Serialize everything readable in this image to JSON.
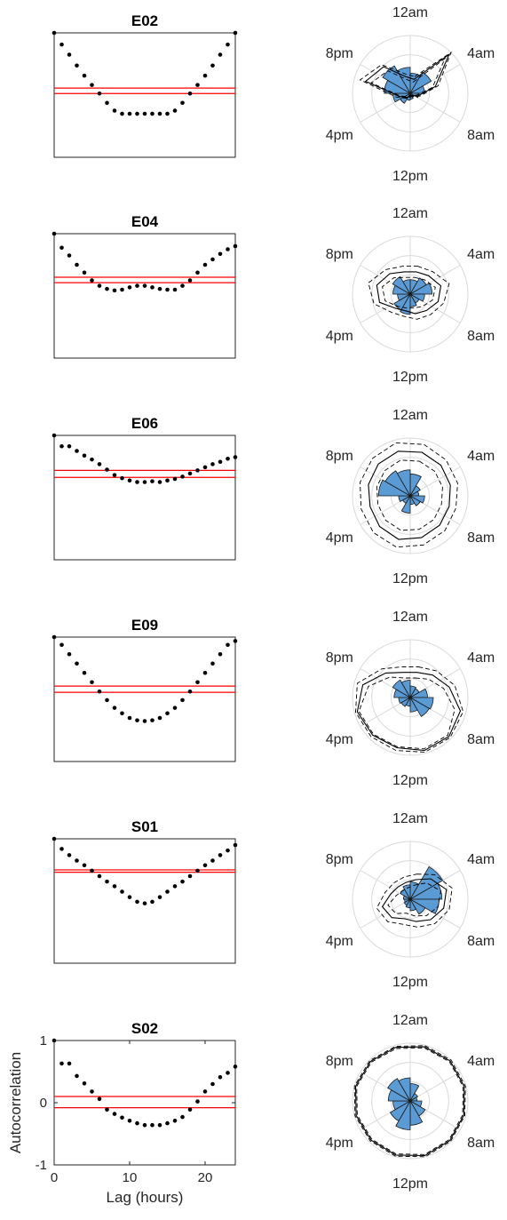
{
  "chart_data": {
    "type": "scatter",
    "panels": [
      {
        "title": "E02",
        "autocorrelation": {
          "x": [
            0,
            1,
            2,
            3,
            4,
            5,
            6,
            7,
            8,
            9,
            10,
            11,
            12,
            13,
            14,
            15,
            16,
            17,
            18,
            19,
            20,
            21,
            22,
            23,
            24
          ],
          "y": [
            1,
            0.85,
            0.72,
            0.58,
            0.45,
            0.33,
            0.22,
            0.1,
            0.0,
            -0.04,
            -0.04,
            -0.04,
            -0.04,
            -0.04,
            -0.04,
            -0.04,
            0.0,
            0.1,
            0.22,
            0.33,
            0.45,
            0.58,
            0.72,
            0.85,
            1
          ],
          "ylim": [
            -0.6,
            1
          ],
          "significance": [
            0.29,
            0.22
          ]
        },
        "rose_wedges": [
          0.35,
          0.42,
          0.25,
          0.15,
          0.08,
          0.1,
          0.12,
          0.2,
          0.3,
          0.45,
          0.55,
          0.45
        ],
        "envelopes": [
          [
            0.25,
            0.95,
            0.45,
            0.15,
            0.06,
            0.05,
            0.06,
            0.1,
            0.2,
            0.8,
            0.65,
            0.3
          ],
          [
            0.2,
            0.85,
            0.4,
            0.12,
            0.05,
            0.04,
            0.05,
            0.08,
            0.18,
            0.7,
            0.55,
            0.25
          ],
          [
            0.3,
            1.0,
            0.5,
            0.18,
            0.08,
            0.06,
            0.08,
            0.12,
            0.25,
            0.9,
            0.7,
            0.35
          ]
        ]
      },
      {
        "title": "E04",
        "autocorrelation": {
          "x": [
            0,
            1,
            2,
            3,
            4,
            5,
            6,
            7,
            8,
            9,
            10,
            11,
            12,
            13,
            14,
            15,
            16,
            17,
            18,
            19,
            20,
            21,
            22,
            23,
            24
          ],
          "y": [
            1,
            0.82,
            0.72,
            0.6,
            0.5,
            0.4,
            0.33,
            0.29,
            0.27,
            0.28,
            0.31,
            0.33,
            0.33,
            0.31,
            0.29,
            0.28,
            0.28,
            0.33,
            0.4,
            0.5,
            0.6,
            0.67,
            0.74,
            0.8,
            0.84
          ],
          "ylim": [
            -0.6,
            1
          ],
          "significance": [
            0.44,
            0.37
          ]
        },
        "rose_wedges": [
          0.25,
          0.32,
          0.38,
          0.25,
          0.18,
          0.22,
          0.35,
          0.32,
          0.22,
          0.3,
          0.35,
          0.25
        ],
        "envelopes": [
          [
            0.4,
            0.45,
            0.55,
            0.5,
            0.4,
            0.35,
            0.3,
            0.35,
            0.55,
            0.6,
            0.5,
            0.4
          ],
          [
            0.3,
            0.35,
            0.45,
            0.4,
            0.3,
            0.25,
            0.25,
            0.3,
            0.45,
            0.5,
            0.4,
            0.3
          ],
          [
            0.5,
            0.55,
            0.7,
            0.6,
            0.5,
            0.45,
            0.4,
            0.45,
            0.65,
            0.75,
            0.6,
            0.5
          ]
        ]
      },
      {
        "title": "E06",
        "autocorrelation": {
          "x": [
            0,
            1,
            2,
            3,
            4,
            5,
            6,
            7,
            8,
            9,
            10,
            11,
            12,
            13,
            14,
            15,
            16,
            17,
            18,
            19,
            20,
            21,
            22,
            23,
            24
          ],
          "y": [
            1,
            0.86,
            0.86,
            0.8,
            0.74,
            0.69,
            0.63,
            0.56,
            0.49,
            0.45,
            0.42,
            0.4,
            0.4,
            0.41,
            0.4,
            0.42,
            0.44,
            0.47,
            0.51,
            0.55,
            0.59,
            0.63,
            0.66,
            0.7,
            0.72
          ],
          "ylim": [
            -0.6,
            1
          ],
          "significance": [
            0.55,
            0.46
          ]
        },
        "rose_wedges": [
          0.38,
          0.2,
          0.15,
          0.25,
          0.2,
          0.15,
          0.3,
          0.15,
          0.2,
          0.55,
          0.5,
          0.45
        ],
        "envelopes": [
          [
            0.78,
            0.75,
            0.72,
            0.7,
            0.72,
            0.75,
            0.78,
            0.75,
            0.72,
            0.75,
            0.78,
            0.8
          ],
          [
            0.62,
            0.6,
            0.58,
            0.56,
            0.58,
            0.6,
            0.62,
            0.6,
            0.58,
            0.6,
            0.62,
            0.64
          ],
          [
            0.92,
            0.88,
            0.85,
            0.82,
            0.85,
            0.88,
            0.92,
            0.9,
            0.88,
            0.9,
            0.92,
            0.95
          ]
        ]
      },
      {
        "title": "E09",
        "autocorrelation": {
          "x": [
            0,
            1,
            2,
            3,
            4,
            5,
            6,
            7,
            8,
            9,
            10,
            11,
            12,
            13,
            14,
            15,
            16,
            17,
            18,
            19,
            20,
            21,
            22,
            23,
            24
          ],
          "y": [
            1,
            0.9,
            0.78,
            0.66,
            0.54,
            0.42,
            0.3,
            0.19,
            0.09,
            0.02,
            -0.04,
            -0.07,
            -0.08,
            -0.07,
            -0.04,
            0.02,
            0.09,
            0.19,
            0.3,
            0.42,
            0.54,
            0.66,
            0.78,
            0.9,
            0.95
          ],
          "ylim": [
            -0.6,
            1
          ],
          "significance": [
            0.37,
            0.29
          ]
        },
        "rose_wedges": [
          0.2,
          0.18,
          0.3,
          0.4,
          0.38,
          0.25,
          0.15,
          0.18,
          0.2,
          0.28,
          0.35,
          0.3
        ],
        "envelopes": [
          [
            0.45,
            0.55,
            0.7,
            0.9,
            0.95,
            0.95,
            0.9,
            0.92,
            0.95,
            0.85,
            0.6,
            0.45
          ],
          [
            0.35,
            0.45,
            0.6,
            0.8,
            0.92,
            0.92,
            0.88,
            0.9,
            0.92,
            0.75,
            0.5,
            0.35
          ],
          [
            0.55,
            0.65,
            0.8,
            0.95,
            0.98,
            0.98,
            0.95,
            0.96,
            0.98,
            0.95,
            0.7,
            0.55
          ]
        ]
      },
      {
        "title": "S01",
        "autocorrelation": {
          "x": [
            0,
            1,
            2,
            3,
            4,
            5,
            6,
            7,
            8,
            9,
            10,
            11,
            12,
            13,
            14,
            15,
            16,
            17,
            18,
            19,
            20,
            21,
            22,
            23,
            24
          ],
          "y": [
            1,
            0.87,
            0.79,
            0.72,
            0.66,
            0.59,
            0.52,
            0.45,
            0.39,
            0.32,
            0.25,
            0.19,
            0.17,
            0.19,
            0.25,
            0.32,
            0.39,
            0.45,
            0.52,
            0.59,
            0.66,
            0.72,
            0.79,
            0.85,
            0.92
          ],
          "ylim": [
            -0.6,
            1
          ],
          "significance": [
            0.6,
            0.57
          ]
        },
        "rose_wedges": [
          0.3,
          0.65,
          0.55,
          0.5,
          0.3,
          0.2,
          0.15,
          0.12,
          0.1,
          0.12,
          0.2,
          0.25
        ],
        "envelopes": [
          [
            0.35,
            0.5,
            0.65,
            0.6,
            0.5,
            0.4,
            0.35,
            0.45,
            0.5,
            0.35,
            0.3,
            0.3
          ],
          [
            0.25,
            0.4,
            0.55,
            0.5,
            0.4,
            0.3,
            0.25,
            0.35,
            0.4,
            0.25,
            0.2,
            0.2
          ],
          [
            0.45,
            0.6,
            0.75,
            0.7,
            0.6,
            0.5,
            0.45,
            0.55,
            0.6,
            0.45,
            0.4,
            0.4
          ]
        ]
      },
      {
        "title": "S02",
        "autocorrelation": {
          "x": [
            0,
            1,
            2,
            3,
            4,
            5,
            6,
            7,
            8,
            9,
            10,
            11,
            12,
            13,
            14,
            15,
            16,
            17,
            18,
            19,
            20,
            21,
            22,
            23,
            24
          ],
          "y": [
            1,
            0.63,
            0.63,
            0.43,
            0.31,
            0.18,
            0.06,
            -0.11,
            -0.18,
            -0.24,
            -0.29,
            -0.33,
            -0.36,
            -0.36,
            -0.36,
            -0.33,
            -0.29,
            -0.23,
            -0.11,
            0.02,
            0.18,
            0.3,
            0.41,
            0.48,
            0.58
          ],
          "ylim": [
            -1,
            1
          ],
          "significance": [
            0.1,
            -0.08
          ]
        },
        "rose_wedges": [
          0.3,
          0.15,
          0.12,
          0.2,
          0.3,
          0.42,
          0.5,
          0.4,
          0.3,
          0.38,
          0.45,
          0.4
        ],
        "envelopes": [
          [
            0.97,
            0.98,
            0.97,
            0.96,
            0.97,
            0.98,
            0.97,
            0.96,
            0.97,
            0.98,
            0.97,
            0.96
          ],
          [
            0.95,
            0.96,
            0.95,
            0.94,
            0.95,
            0.96,
            0.95,
            0.94,
            0.95,
            0.96,
            0.95,
            0.94
          ],
          [
            0.99,
            1.0,
            0.99,
            0.98,
            0.99,
            1.0,
            0.99,
            0.98,
            0.99,
            1.0,
            0.99,
            0.98
          ]
        ]
      }
    ],
    "xlim": [
      0,
      24
    ],
    "xticks": [
      "0",
      "10",
      "20"
    ],
    "yticks": [
      "-1",
      "0",
      "1"
    ],
    "xlabel": "Lag (hours)",
    "ylabel": "Autocorrelation",
    "polar_labels": [
      "12am",
      "4am",
      "8am",
      "12pm",
      "4pm",
      "8pm"
    ],
    "colors": {
      "points": "#000000",
      "significance": "#ff0000",
      "wedge_fill": "#5b9bd5",
      "wedge_edge": "#1a1a1a",
      "polar_grid": "#d9d9d9"
    }
  }
}
